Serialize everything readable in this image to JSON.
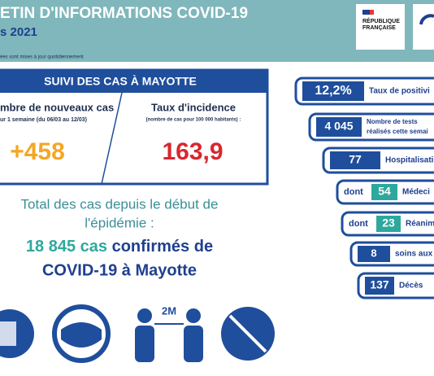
{
  "header": {
    "title": "ETIN D'INFORMATIONS COVID-19",
    "date": "s 2021",
    "note": "ées sont mises à jour quotidiennement",
    "logo": [
      "RÉPUBLIQUE",
      "FRANÇAISE"
    ]
  },
  "cases": {
    "title": "SUIVI DES CAS À MAYOTTE",
    "new_cases": {
      "label": "mbre de nouveaux cas",
      "sub": "ur 1 semaine (du 06/03 au 12/03)",
      "value": "+458"
    },
    "incidence": {
      "label": "Taux d'incidence",
      "sub": "(nombre de cas pour 100 000 habitants) :",
      "value": "163,9"
    }
  },
  "total": {
    "line1": "Total des cas depuis le début de",
    "line2": "l'épidémie :",
    "count": "18 845 cas",
    "line3": "confirmés de",
    "line4": "COVID-19 à Mayotte"
  },
  "indicators": [
    {
      "value": "12,2%",
      "label": "Taux de positivi"
    },
    {
      "value": "4 045",
      "label": "Nombre de tests",
      "label2": "réalisés cette semai"
    },
    {
      "value": "77",
      "label": "Hospitalisatio"
    },
    {
      "prefix": "dont",
      "value": "54",
      "label": "Médeci"
    },
    {
      "prefix": "dont",
      "value": "23",
      "label": "Réanim"
    },
    {
      "value": "8",
      "label": "soins aux"
    },
    {
      "value": "137",
      "label": "Décès"
    }
  ]
}
